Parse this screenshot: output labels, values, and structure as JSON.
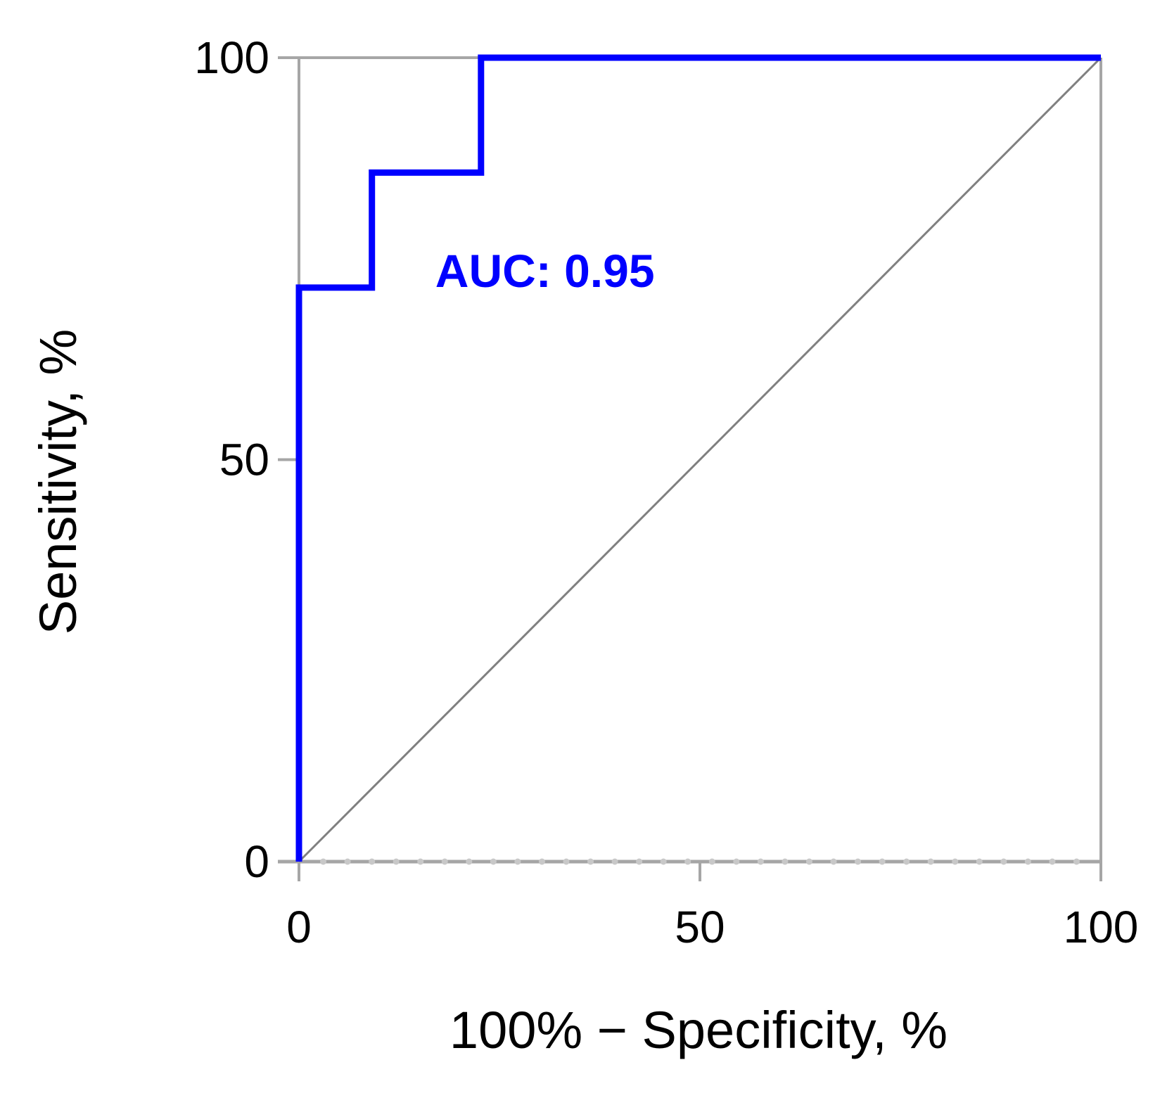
{
  "chart_data": {
    "type": "line",
    "title": "",
    "xlabel": "100% − Specificity, %",
    "ylabel": "Sensitivity, %",
    "xlim": [
      0,
      100
    ],
    "ylim": [
      0,
      100
    ],
    "xticks": [
      "0",
      "50",
      "100"
    ],
    "yticks": [
      "0",
      "50",
      "100"
    ],
    "grid": false,
    "series": [
      {
        "color": "#0000ff",
        "step": true,
        "x": [
          0,
          0,
          9.1,
          9.1,
          22.7,
          22.7,
          100
        ],
        "y": [
          0,
          71.4,
          71.4,
          85.7,
          85.7,
          100,
          100
        ]
      },
      {
        "color": "#808080",
        "x": [
          0,
          100
        ],
        "y": [
          0,
          100
        ]
      }
    ],
    "annotations": [
      {
        "text": "AUC: 0.95",
        "x": 17,
        "y": 71.5,
        "color": "#0000ff"
      }
    ]
  }
}
